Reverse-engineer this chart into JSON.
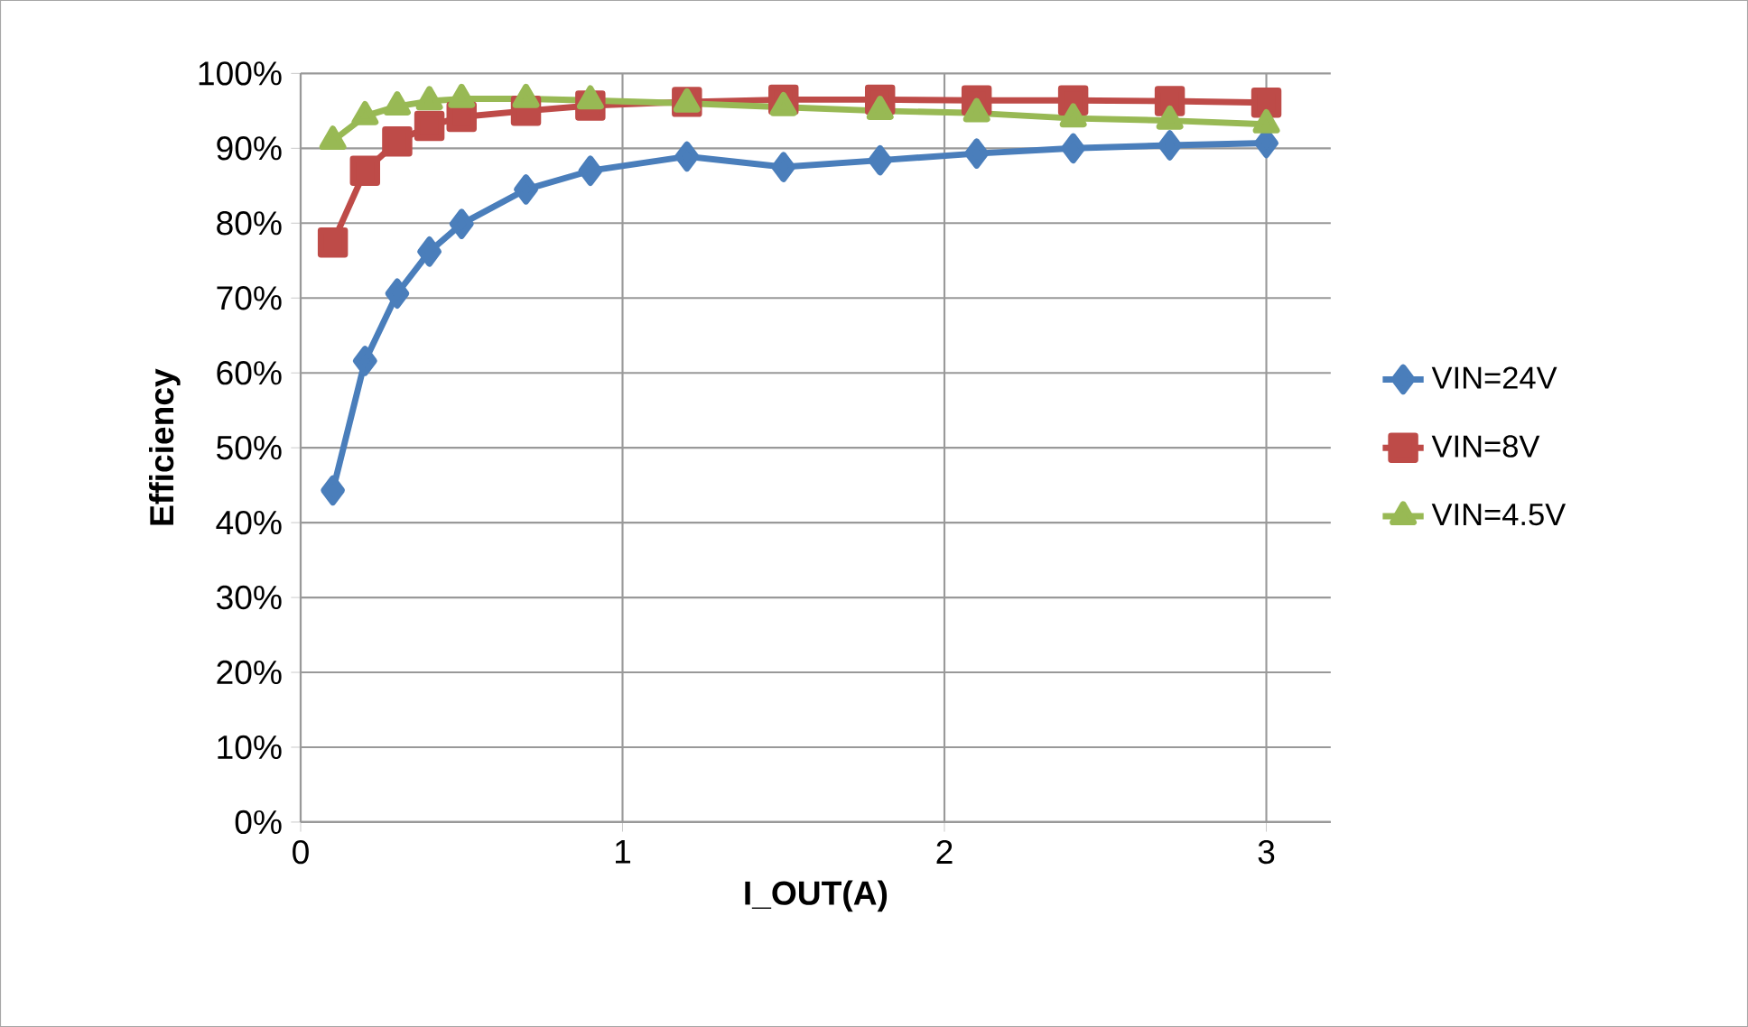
{
  "chart_data": {
    "type": "line",
    "xlabel": "I_OUT(A)",
    "ylabel": "Efficiency",
    "x": [
      0.1,
      0.2,
      0.3,
      0.4,
      0.5,
      0.7,
      0.9,
      1.2,
      1.5,
      1.8,
      2.1,
      2.4,
      2.7,
      3.0
    ],
    "series": [
      {
        "name": "VIN=24V",
        "color": "#4a7ebb",
        "marker": "diamond",
        "values": [
          44.3,
          61.6,
          70.6,
          76.2,
          79.9,
          84.5,
          87.0,
          88.9,
          87.5,
          88.4,
          89.3,
          90.0,
          90.4,
          90.7
        ]
      },
      {
        "name": "VIN=8V",
        "color": "#be4b48",
        "marker": "square",
        "values": [
          77.4,
          87.0,
          90.9,
          93.0,
          94.2,
          95.0,
          95.7,
          96.2,
          96.5,
          96.5,
          96.4,
          96.4,
          96.3,
          96.1
        ]
      },
      {
        "name": "VIN=4.5V",
        "color": "#98b954",
        "marker": "triangle",
        "values": [
          91.0,
          94.3,
          95.6,
          96.3,
          96.6,
          96.6,
          96.4,
          96.0,
          95.5,
          95.0,
          94.7,
          94.0,
          93.7,
          93.2
        ]
      }
    ],
    "xlim": [
      0,
      3.2
    ],
    "xticks": [
      0,
      1,
      2,
      3
    ],
    "ylim": [
      0,
      100
    ],
    "yticks": [
      {
        "value": 0,
        "label": "0%"
      },
      {
        "value": 10,
        "label": "10%"
      },
      {
        "value": 20,
        "label": "20%"
      },
      {
        "value": 30,
        "label": "30%"
      },
      {
        "value": 40,
        "label": "40%"
      },
      {
        "value": 50,
        "label": "50%"
      },
      {
        "value": 60,
        "label": "60%"
      },
      {
        "value": 70,
        "label": "70%"
      },
      {
        "value": 80,
        "label": "80%"
      },
      {
        "value": 90,
        "label": "90%"
      },
      {
        "value": 100,
        "label": "100%"
      }
    ],
    "grid": true,
    "legend": "right"
  }
}
